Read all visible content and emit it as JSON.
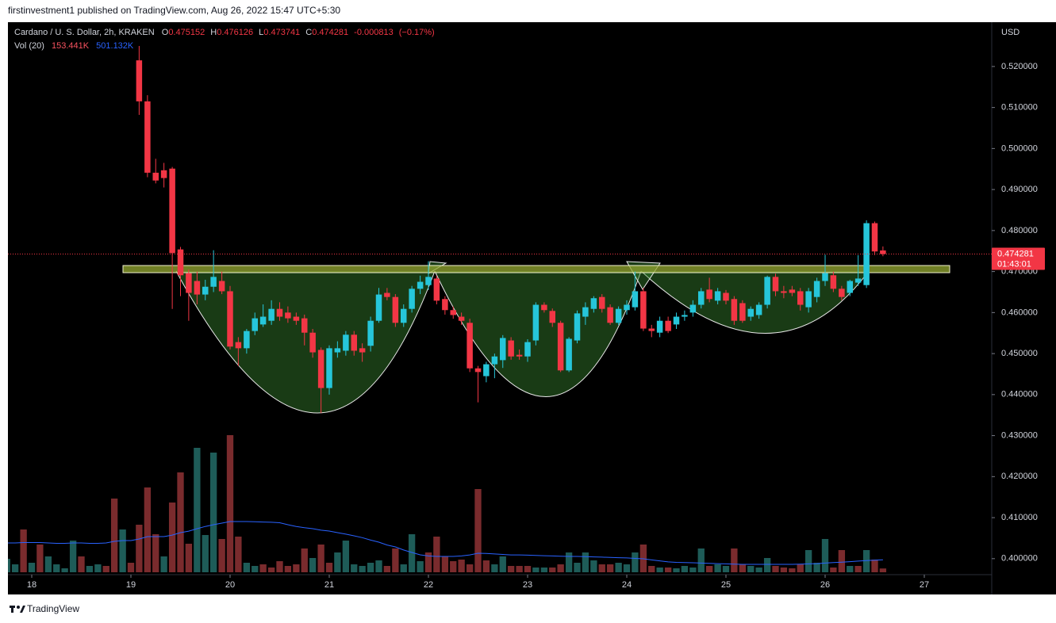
{
  "chart_data": {
    "type": "candlestick",
    "publisher": "firstinvestment1 published on TradingView.com, Aug 26, 2022 15:47 UTC+5:30",
    "title": "Cardano / U. S. Dollar, 2h, KRAKEN",
    "ohlc_letters": [
      "O",
      "H",
      "L",
      "C"
    ],
    "change": -0.000813,
    "change_percent": -0.17,
    "change_percent_label": "(−0.17%)",
    "countdown": "01:43:01",
    "currency": "USD",
    "footer": "TradingView",
    "up_color": "#26c6da",
    "down_color": "#f23645",
    "grid": false,
    "xlim": [
      17.76,
      27.68
    ],
    "xticks": [
      18,
      19,
      20,
      21,
      22,
      23,
      24,
      25,
      26,
      27
    ],
    "ylim": [
      0.3961,
      0.5308
    ],
    "yticks": [
      {
        "value": 0.4,
        "label": "0.400000"
      },
      {
        "value": 0.41,
        "label": "0.410000"
      },
      {
        "value": 0.42,
        "label": "0.420000"
      },
      {
        "value": 0.43,
        "label": "0.430000"
      },
      {
        "value": 0.44,
        "label": "0.440000"
      },
      {
        "value": 0.45,
        "label": "0.450000"
      },
      {
        "value": 0.46,
        "label": "0.460000"
      },
      {
        "value": 0.47,
        "label": "0.470000"
      },
      {
        "value": 0.48,
        "label": "0.480000"
      },
      {
        "value": 0.49,
        "label": "0.490000"
      },
      {
        "value": 0.5,
        "label": "0.500000"
      },
      {
        "value": 0.51,
        "label": "0.510000"
      },
      {
        "value": 0.52,
        "label": "0.520000"
      }
    ],
    "x": [
      19.083,
      19.167,
      19.25,
      19.333,
      19.417,
      19.5,
      19.583,
      19.667,
      19.75,
      19.833,
      19.917,
      20,
      20.083,
      20.167,
      20.25,
      20.333,
      20.417,
      20.5,
      20.583,
      20.667,
      20.75,
      20.833,
      20.917,
      21,
      21.083,
      21.167,
      21.25,
      21.333,
      21.417,
      21.5,
      21.583,
      21.667,
      21.75,
      21.833,
      21.917,
      22,
      22.083,
      22.167,
      22.25,
      22.333,
      22.417,
      22.5,
      22.583,
      22.667,
      22.75,
      22.833,
      22.917,
      23,
      23.083,
      23.167,
      23.25,
      23.333,
      23.417,
      23.5,
      23.583,
      23.667,
      23.75,
      23.833,
      23.917,
      24,
      24.083,
      24.167,
      24.25,
      24.333,
      24.417,
      24.5,
      24.583,
      24.667,
      24.75,
      24.833,
      24.917,
      25,
      25.083,
      25.167,
      25.25,
      25.333,
      25.417,
      25.5,
      25.583,
      25.667,
      25.75,
      25.833,
      25.917,
      26,
      26.083,
      26.167,
      26.25,
      26.333,
      26.417,
      26.5,
      26.583
    ],
    "open": [
      0.5215,
      0.5115,
      0.4941,
      0.4947,
      0.4951,
      0.4754,
      0.4696,
      0.4677,
      0.4644,
      0.4663,
      0.4677,
      0.4652,
      0.4528,
      0.4513,
      0.4555,
      0.4571,
      0.458,
      0.4609,
      0.46,
      0.459,
      0.4586,
      0.4551,
      0.4509,
      0.4416,
      0.4503,
      0.4507,
      0.4546,
      0.4513,
      0.4519,
      0.458,
      0.4648,
      0.4638,
      0.4575,
      0.4609,
      0.4658,
      0.4667,
      0.4683,
      0.4633,
      0.4606,
      0.459,
      0.4575,
      0.4464,
      0.4445,
      0.4474,
      0.4484,
      0.4532,
      0.4497,
      0.4493,
      0.4532,
      0.4619,
      0.4604,
      0.4575,
      0.4459,
      0.4532,
      0.459,
      0.4609,
      0.4638,
      0.4613,
      0.4575,
      0.4606,
      0.4613,
      0.4652,
      0.4561,
      0.4551,
      0.458,
      0.4571,
      0.459,
      0.46,
      0.4619,
      0.4656,
      0.4629,
      0.4648,
      0.4633,
      0.4623,
      0.459,
      0.4594,
      0.4619,
      0.4687,
      0.4652,
      0.4656,
      0.4652,
      0.4613,
      0.4638,
      0.4677,
      0.4691,
      0.4658,
      0.4648,
      0.4673,
      0.4667,
      0.4818,
      0.475152
    ],
    "high": [
      0.525,
      0.513,
      0.4975,
      0.4965,
      0.4955,
      0.476,
      0.4705,
      0.47,
      0.468,
      0.4752,
      0.47,
      0.4665,
      0.454,
      0.456,
      0.46,
      0.462,
      0.463,
      0.4625,
      0.4615,
      0.46,
      0.4595,
      0.456,
      0.4515,
      0.452,
      0.453,
      0.4555,
      0.4555,
      0.4525,
      0.459,
      0.466,
      0.466,
      0.4645,
      0.462,
      0.4665,
      0.469,
      0.4725,
      0.469,
      0.464,
      0.4615,
      0.46,
      0.4585,
      0.447,
      0.448,
      0.45,
      0.4545,
      0.454,
      0.451,
      0.4535,
      0.4625,
      0.4625,
      0.461,
      0.458,
      0.454,
      0.4605,
      0.4625,
      0.464,
      0.4645,
      0.462,
      0.4615,
      0.463,
      0.47,
      0.466,
      0.457,
      0.459,
      0.459,
      0.46,
      0.4605,
      0.463,
      0.466,
      0.4685,
      0.466,
      0.4655,
      0.464,
      0.463,
      0.4615,
      0.4625,
      0.469,
      0.4695,
      0.4665,
      0.4665,
      0.466,
      0.466,
      0.4685,
      0.4741,
      0.47,
      0.4665,
      0.468,
      0.474,
      0.4825,
      0.4822,
      0.476126
    ],
    "low": [
      0.5082,
      0.493,
      0.4915,
      0.4905,
      0.4609,
      0.464,
      0.458,
      0.462,
      0.463,
      0.465,
      0.4645,
      0.451,
      0.447,
      0.45,
      0.4545,
      0.4565,
      0.457,
      0.458,
      0.4575,
      0.457,
      0.452,
      0.449,
      0.4355,
      0.44,
      0.449,
      0.4495,
      0.4495,
      0.448,
      0.4505,
      0.4575,
      0.463,
      0.4565,
      0.4565,
      0.46,
      0.4645,
      0.4655,
      0.462,
      0.4595,
      0.4585,
      0.457,
      0.4455,
      0.4381,
      0.443,
      0.444,
      0.4465,
      0.4485,
      0.4485,
      0.448,
      0.452,
      0.46,
      0.4565,
      0.4455,
      0.4455,
      0.4525,
      0.457,
      0.46,
      0.46,
      0.457,
      0.457,
      0.4595,
      0.4605,
      0.4555,
      0.454,
      0.454,
      0.455,
      0.456,
      0.458,
      0.459,
      0.461,
      0.4625,
      0.462,
      0.462,
      0.457,
      0.4575,
      0.458,
      0.4585,
      0.461,
      0.464,
      0.4635,
      0.464,
      0.4605,
      0.46,
      0.4625,
      0.4665,
      0.465,
      0.463,
      0.464,
      0.4665,
      0.466,
      0.474,
      0.473741
    ],
    "close": [
      0.5115,
      0.4941,
      0.4922,
      0.4928,
      0.4745,
      0.4691,
      0.4648,
      0.4644,
      0.4663,
      0.4687,
      0.4652,
      0.4517,
      0.4513,
      0.4555,
      0.4586,
      0.459,
      0.4609,
      0.459,
      0.4586,
      0.458,
      0.4551,
      0.4503,
      0.4416,
      0.4513,
      0.4513,
      0.4546,
      0.4507,
      0.4503,
      0.458,
      0.4644,
      0.4638,
      0.4575,
      0.4609,
      0.4658,
      0.4675,
      0.4687,
      0.4629,
      0.4606,
      0.4594,
      0.458,
      0.4464,
      0.4455,
      0.4474,
      0.4493,
      0.4538,
      0.4493,
      0.4493,
      0.4528,
      0.4619,
      0.4606,
      0.4575,
      0.4459,
      0.4536,
      0.4598,
      0.4613,
      0.4635,
      0.4609,
      0.4575,
      0.4609,
      0.4619,
      0.4652,
      0.4561,
      0.4555,
      0.458,
      0.4555,
      0.459,
      0.4594,
      0.4619,
      0.4652,
      0.4633,
      0.4652,
      0.4629,
      0.458,
      0.458,
      0.4609,
      0.4619,
      0.4687,
      0.4652,
      0.4648,
      0.4648,
      0.4619,
      0.4652,
      0.4677,
      0.4696,
      0.4658,
      0.4638,
      0.4677,
      0.4683,
      0.4818,
      0.4749,
      0.474281
    ],
    "volume": {
      "name": "Vol (20)",
      "last_label": "153.441K",
      "x": [
        17.75,
        17.833,
        17.917,
        18,
        18.083,
        18.167,
        18.25,
        18.333,
        18.417,
        18.5,
        18.583,
        18.667,
        18.75,
        18.833,
        18.917,
        19,
        19.083,
        19.167,
        19.25,
        19.333,
        19.417,
        19.5,
        19.583,
        19.667,
        19.75,
        19.833,
        19.917,
        20,
        20.083,
        20.167,
        20.25,
        20.333,
        20.417,
        20.5,
        20.583,
        20.667,
        20.75,
        20.833,
        20.917,
        21,
        21.083,
        21.167,
        21.25,
        21.333,
        21.417,
        21.5,
        21.583,
        21.667,
        21.75,
        21.833,
        21.917,
        22,
        22.083,
        22.167,
        22.25,
        22.333,
        22.417,
        22.5,
        22.583,
        22.667,
        22.75,
        22.833,
        22.917,
        23,
        23.083,
        23.167,
        23.25,
        23.333,
        23.417,
        23.5,
        23.583,
        23.667,
        23.75,
        23.833,
        23.917,
        24,
        24.083,
        24.167,
        24.25,
        24.333,
        24.417,
        24.5,
        24.583,
        24.667,
        24.75,
        24.833,
        24.917,
        25,
        25.083,
        25.167,
        25.25,
        25.333,
        25.417,
        25.5,
        25.583,
        25.667,
        25.75,
        25.833,
        25.917,
        26,
        26.083,
        26.167,
        26.25,
        26.333,
        26.417,
        26.5,
        26.583
      ],
      "values": [
        544,
        320,
        1728,
        384,
        1120,
        640,
        320,
        160,
        1280,
        640,
        256,
        320,
        256,
        2976,
        1728,
        384,
        1920,
        3424,
        1536,
        640,
        2816,
        4032,
        1152,
        5024,
        1504,
        4832,
        1344,
        5536,
        1440,
        384,
        256,
        320,
        192,
        448,
        256,
        320,
        960,
        576,
        1120,
        384,
        800,
        1280,
        320,
        256,
        384,
        480,
        256,
        960,
        320,
        1536,
        448,
        800,
        1440,
        640,
        448,
        512,
        320,
        3360,
        480,
        320,
        640,
        256,
        256,
        256,
        192,
        192,
        192,
        320,
        800,
        384,
        800,
        480,
        320,
        320,
        384,
        320,
        800,
        1120,
        256,
        192,
        192,
        160,
        256,
        192,
        960,
        256,
        320,
        256,
        960,
        320,
        256,
        192,
        576,
        256,
        192,
        160,
        320,
        896,
        384,
        1344,
        192,
        896,
        256,
        256,
        896,
        512,
        153.441
      ],
      "colors": [
        "#1e5c58",
        "#1e5c58",
        "#7a2b2d",
        "#1e5c58",
        "#7a2b2d",
        "#1e5c58",
        "#1e5c58",
        "#1e5c58",
        "#1e5c58",
        "#7a2b2d",
        "#1e5c58",
        "#1e5c58",
        "#7a2b2d",
        "#7a2b2d",
        "#1e5c58",
        "#7a2b2d",
        "#7a2b2d",
        "#7a2b2d",
        "#7a2b2d",
        "#1e5c58",
        "#7a2b2d",
        "#7a2b2d",
        "#7a2b2d",
        "#1e5c58",
        "#1e5c58",
        "#1e5c58",
        "#7a2b2d",
        "#7a2b2d",
        "#7a2b2d",
        "#1e5c58",
        "#1e5c58",
        "#7a2b2d",
        "#7a2b2d",
        "#7a2b2d",
        "#7a2b2d",
        "#7a2b2d",
        "#7a2b2d",
        "#1e5c58",
        "#7a2b2d",
        "#7a2b2d",
        "#1e5c58",
        "#1e5c58",
        "#1e5c58",
        "#1e5c58",
        "#1e5c58",
        "#1e5c58",
        "#7a2b2d",
        "#7a2b2d",
        "#1e5c58",
        "#1e5c58",
        "#1e5c58",
        "#7a2b2d",
        "#7a2b2d",
        "#7a2b2d",
        "#7a2b2d",
        "#7a2b2d",
        "#7a2b2d",
        "#7a2b2d",
        "#7a2b2d",
        "#1e5c58",
        "#1e5c58",
        "#7a2b2d",
        "#7a2b2d",
        "#7a2b2d",
        "#1e5c58",
        "#1e5c58",
        "#7a2b2d",
        "#7a2b2d",
        "#1e5c58",
        "#1e5c58",
        "#1e5c58",
        "#1e5c58",
        "#7a2b2d",
        "#7a2b2d",
        "#1e5c58",
        "#1e5c58",
        "#1e5c58",
        "#7a2b2d",
        "#7a2b2d",
        "#1e5c58",
        "#7a2b2d",
        "#1e5c58",
        "#1e5c58",
        "#1e5c58",
        "#1e5c58",
        "#7a2b2d",
        "#1e5c58",
        "#1e5c58",
        "#7a2b2d",
        "#7a2b2d",
        "#1e5c58",
        "#1e5c58",
        "#1e5c58",
        "#7a2b2d",
        "#7a2b2d",
        "#7a2b2d",
        "#7a2b2d",
        "#1e5c58",
        "#1e5c58",
        "#1e5c58",
        "#7a2b2d",
        "#7a2b2d",
        "#1e5c58",
        "#7a2b2d",
        "#1e5c58",
        "#7a2b2d",
        "#7a2b2d"
      ],
      "label_color": "#f7525f",
      "ma": {
        "color": "#2962ff",
        "last_label": "501.132K",
        "values": [
          1184,
          1184,
          1200,
          1200,
          1200,
          1184,
          1168,
          1168,
          1184,
          1184,
          1168,
          1168,
          1184,
          1248,
          1280,
          1280,
          1344,
          1440,
          1440,
          1440,
          1500,
          1600,
          1660,
          1760,
          1850,
          1920,
          1984,
          2048,
          2048,
          2048,
          2040,
          2030,
          2020,
          2000,
          1920,
          1850,
          1800,
          1760,
          1700,
          1664,
          1600,
          1540,
          1472,
          1400,
          1300,
          1216,
          1100,
          1024,
          900,
          800,
          704,
          660,
          640,
          640,
          640,
          660,
          700,
          768,
          760,
          740,
          720,
          700,
          700,
          690,
          680,
          670,
          660,
          650,
          640,
          640,
          630,
          620,
          610,
          600,
          590,
          580,
          560,
          544,
          500,
          460,
          420,
          400,
          390,
          384,
          370,
          360,
          350,
          340,
          330,
          320,
          320,
          320,
          320,
          320,
          320,
          320,
          330,
          340,
          350,
          370,
          390,
          410,
          430,
          450,
          470,
          490,
          501.132
        ]
      }
    }
  }
}
